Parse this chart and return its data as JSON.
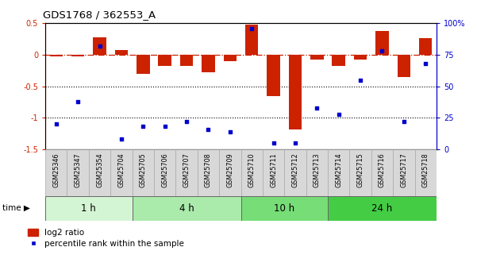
{
  "title": "GDS1768 / 362553_A",
  "samples": [
    "GSM25346",
    "GSM25347",
    "GSM25354",
    "GSM25704",
    "GSM25705",
    "GSM25706",
    "GSM25707",
    "GSM25708",
    "GSM25709",
    "GSM25710",
    "GSM25711",
    "GSM25712",
    "GSM25713",
    "GSM25714",
    "GSM25715",
    "GSM25716",
    "GSM25717",
    "GSM25718"
  ],
  "log2_ratio": [
    -0.02,
    -0.02,
    0.28,
    0.08,
    -0.3,
    -0.18,
    -0.18,
    -0.28,
    -0.1,
    0.48,
    -0.65,
    -1.18,
    -0.08,
    -0.18,
    -0.08,
    0.38,
    -0.35,
    0.26
  ],
  "percentile": [
    20,
    38,
    82,
    8,
    18,
    18,
    22,
    16,
    14,
    96,
    5,
    5,
    33,
    28,
    55,
    78,
    22,
    68
  ],
  "time_groups": [
    {
      "label": "1 h",
      "start": 0,
      "end": 4,
      "color": "#d4f5d4"
    },
    {
      "label": "4 h",
      "start": 4,
      "end": 9,
      "color": "#aaeaaa"
    },
    {
      "label": "10 h",
      "start": 9,
      "end": 13,
      "color": "#77dd77"
    },
    {
      "label": "24 h",
      "start": 13,
      "end": 18,
      "color": "#44cc44"
    }
  ],
  "bar_color": "#cc2200",
  "dot_color": "#0000cc",
  "hline_color": "#cc2200",
  "ylim_left": [
    -1.5,
    0.5
  ],
  "ylim_right": [
    0,
    100
  ],
  "yticks_left": [
    -1.5,
    -1.0,
    -0.5,
    0.0,
    0.5
  ],
  "yticks_right": [
    0,
    25,
    50,
    75,
    100
  ],
  "ytick_labels_right": [
    "0",
    "25",
    "50",
    "75",
    "100%"
  ],
  "background_color": "#ffffff",
  "figsize": [
    6.01,
    3.45
  ],
  "dpi": 100
}
